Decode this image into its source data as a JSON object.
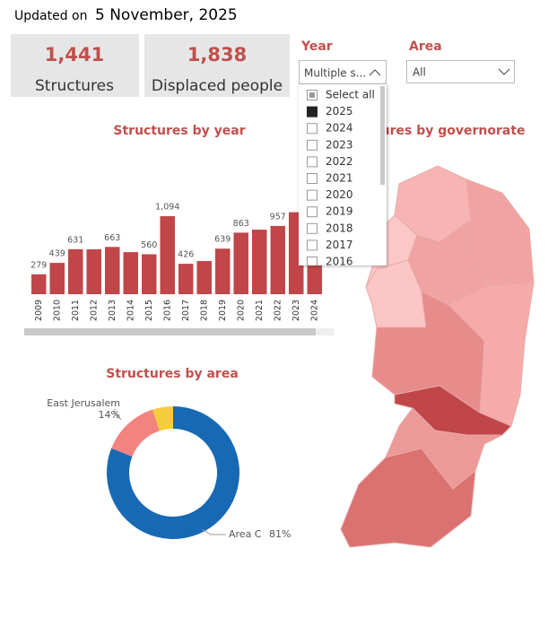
{
  "header": {
    "label": "Updated on",
    "date": "5 November, 2025"
  },
  "cards": [
    {
      "value": "1,441",
      "label": "Structures"
    },
    {
      "value": "1,838",
      "label": "Displaced people"
    }
  ],
  "slicers": [
    {
      "title": "Year",
      "selection": "Multiple s...",
      "items": [
        "Select all",
        "2025",
        "2024",
        "2023",
        "2022",
        "2021",
        "2020",
        "2019",
        "2018",
        "2017",
        "2016"
      ],
      "selected": [
        "2025"
      ]
    },
    {
      "title": "Area",
      "selection": "All"
    }
  ],
  "chart_data": [
    {
      "type": "bar",
      "title": "Structures by year",
      "color": "#c0464a",
      "categories": [
        "2009",
        "2010",
        "2011",
        "2012",
        "2013",
        "2014",
        "2015",
        "2016",
        "2017",
        "2018",
        "2019",
        "2020",
        "2021",
        "2022",
        "2023",
        "2024"
      ],
      "values": [
        279,
        439,
        631,
        630,
        663,
        590,
        560,
        1094,
        426,
        465,
        639,
        863,
        905,
        957,
        1150,
        430
      ],
      "value_labels": [
        "279",
        "439",
        "631",
        null,
        "663",
        null,
        "560",
        "1,094",
        "426",
        null,
        "639",
        "863",
        null,
        "957",
        null,
        null
      ]
    },
    {
      "type": "pie",
      "title": "Structures by area",
      "donut": true,
      "categories": [
        "Area C",
        "East Jerusalem",
        null
      ],
      "values": [
        81,
        14,
        5
      ],
      "value_labels": [
        "81%",
        "14%",
        null
      ],
      "colors": [
        "#1769b4",
        "#f4827f",
        "#f5cd3c"
      ]
    },
    {
      "type": "map",
      "title": "Structures by governorate"
    }
  ]
}
